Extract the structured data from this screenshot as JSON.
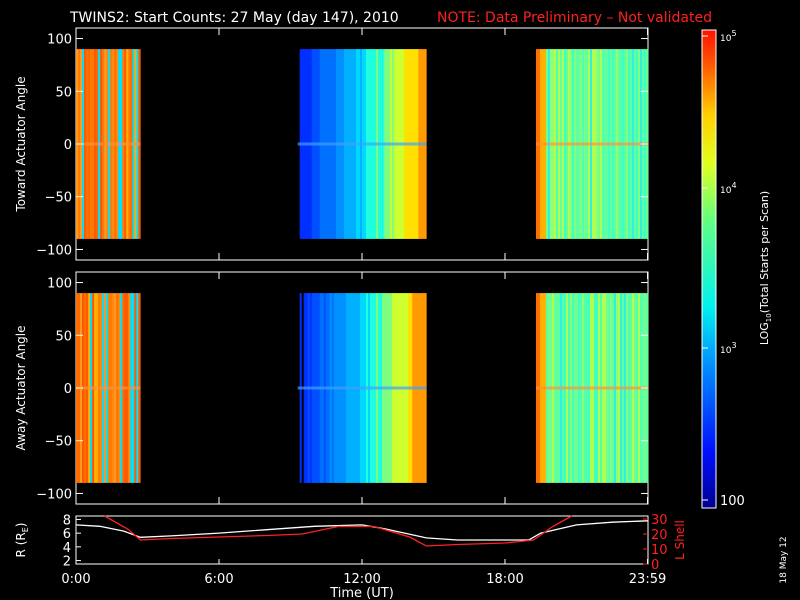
{
  "title": {
    "main": "TWINS2: Start Counts: 27 May (day 147), 2010",
    "note": "NOTE: Data Preliminary – Not validated",
    "note_color": "#ff2020"
  },
  "stamp": "18 May 12",
  "chart_data": [
    {
      "type": "heatmap",
      "ylabel": "Toward Actuator Angle",
      "ylim": [
        -110,
        110
      ],
      "yticks": [
        "100",
        "50",
        "0",
        "−50",
        "−100"
      ],
      "xlim": [
        0,
        24
      ],
      "angle_range": [
        -90,
        90
      ],
      "blocks": [
        {
          "start_h": 0.0,
          "end_h": 2.7,
          "level": "high"
        },
        {
          "start_h": 9.3,
          "end_h": 14.7,
          "level": "low_to_mid"
        },
        {
          "start_h": 19.3,
          "end_h": 24.0,
          "level": "mid"
        }
      ]
    },
    {
      "type": "heatmap",
      "ylabel": "Away Actuator Angle",
      "ylim": [
        -110,
        110
      ],
      "yticks": [
        "100",
        "50",
        "0",
        "−50",
        "−100"
      ],
      "xlim": [
        0,
        24
      ],
      "angle_range": [
        -90,
        90
      ],
      "blocks": [
        {
          "start_h": 0.0,
          "end_h": 2.7,
          "level": "high"
        },
        {
          "start_h": 9.3,
          "end_h": 14.7,
          "level": "low_to_mid"
        },
        {
          "start_h": 19.3,
          "end_h": 24.0,
          "level": "mid"
        }
      ]
    },
    {
      "type": "line",
      "xlabel": "Time (UT)",
      "xticks": [
        "0:00",
        "6:00",
        "12:00",
        "18:00",
        "23:59"
      ],
      "xtick_hours": [
        0,
        6,
        12,
        18,
        23.98
      ],
      "ylabel": "R (R",
      "ylabel_sub": "E",
      "ylabel_end": ")",
      "yticks": [
        "8",
        "6",
        "4",
        "2"
      ],
      "ylim": [
        1.5,
        8.5
      ],
      "y2label": "L Shell",
      "y2ticks": [
        "30",
        "20",
        "10",
        "0"
      ],
      "y2lim": [
        0,
        32
      ],
      "series": [
        {
          "axis": "left",
          "color": "#ffffff",
          "x": [
            0,
            1,
            2,
            2.7,
            4,
            6,
            8,
            10,
            12,
            13,
            14.7,
            16,
            18,
            19,
            19.5,
            21,
            22.5,
            24
          ],
          "y": [
            7.2,
            7.0,
            6.3,
            5.4,
            5.6,
            6.0,
            6.5,
            7.0,
            7.2,
            6.6,
            5.3,
            5.0,
            5.0,
            5.0,
            6.0,
            7.2,
            7.6,
            7.8
          ]
        },
        {
          "axis": "right",
          "color": "#ff2020",
          "x": [
            1.2,
            2.2,
            2.7,
            4,
            6,
            8,
            9.5,
            11,
            12.5,
            14,
            14.7,
            16,
            18,
            19.2,
            20,
            20.8
          ],
          "y": [
            32,
            23,
            16,
            17,
            18,
            19,
            20,
            25,
            25,
            18,
            12,
            13,
            14,
            16,
            25,
            32
          ]
        }
      ]
    }
  ],
  "colorbar": {
    "label_prefix": "LOG",
    "label_sub": "10",
    "label_suffix": "(Total Starts per Scan)",
    "ticks": [
      {
        "base": "10",
        "exp": "5"
      },
      {
        "base": "10",
        "exp": "4"
      },
      {
        "base": "10",
        "exp": "3"
      },
      {
        "base": "100",
        "exp": ""
      }
    ]
  }
}
